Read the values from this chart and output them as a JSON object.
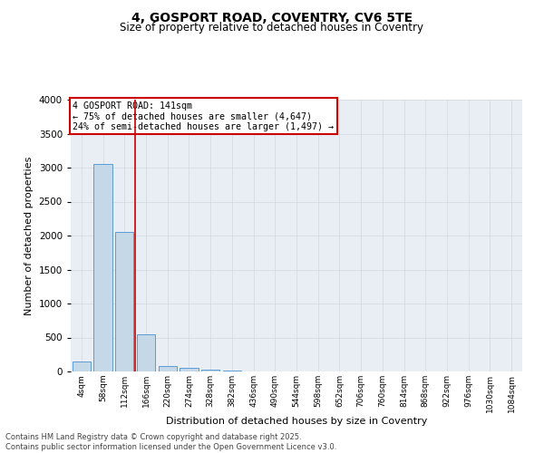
{
  "title1": "4, GOSPORT ROAD, COVENTRY, CV6 5TE",
  "title2": "Size of property relative to detached houses in Coventry",
  "xlabel": "Distribution of detached houses by size in Coventry",
  "ylabel": "Number of detached properties",
  "bin_labels": [
    "4sqm",
    "58sqm",
    "112sqm",
    "166sqm",
    "220sqm",
    "274sqm",
    "328sqm",
    "382sqm",
    "436sqm",
    "490sqm",
    "544sqm",
    "598sqm",
    "652sqm",
    "706sqm",
    "760sqm",
    "814sqm",
    "868sqm",
    "922sqm",
    "976sqm",
    "1030sqm",
    "1084sqm"
  ],
  "bar_heights": [
    150,
    3050,
    2050,
    550,
    80,
    60,
    30,
    20,
    5,
    0,
    0,
    0,
    0,
    0,
    0,
    0,
    0,
    0,
    0,
    0,
    0
  ],
  "bar_color": "#c5d8e8",
  "bar_edge_color": "#5b9bd5",
  "vline_color": "#cc0000",
  "vline_pos": 2.5,
  "annotation_text": "4 GOSPORT ROAD: 141sqm\n← 75% of detached houses are smaller (4,647)\n24% of semi-detached houses are larger (1,497) →",
  "annotation_box_color": "#cc0000",
  "ylim": [
    0,
    4000
  ],
  "yticks": [
    0,
    500,
    1000,
    1500,
    2000,
    2500,
    3000,
    3500,
    4000
  ],
  "grid_color": "#d0d8e0",
  "bg_color": "#e8eef4",
  "footer1": "Contains HM Land Registry data © Crown copyright and database right 2025.",
  "footer2": "Contains public sector information licensed under the Open Government Licence v3.0."
}
